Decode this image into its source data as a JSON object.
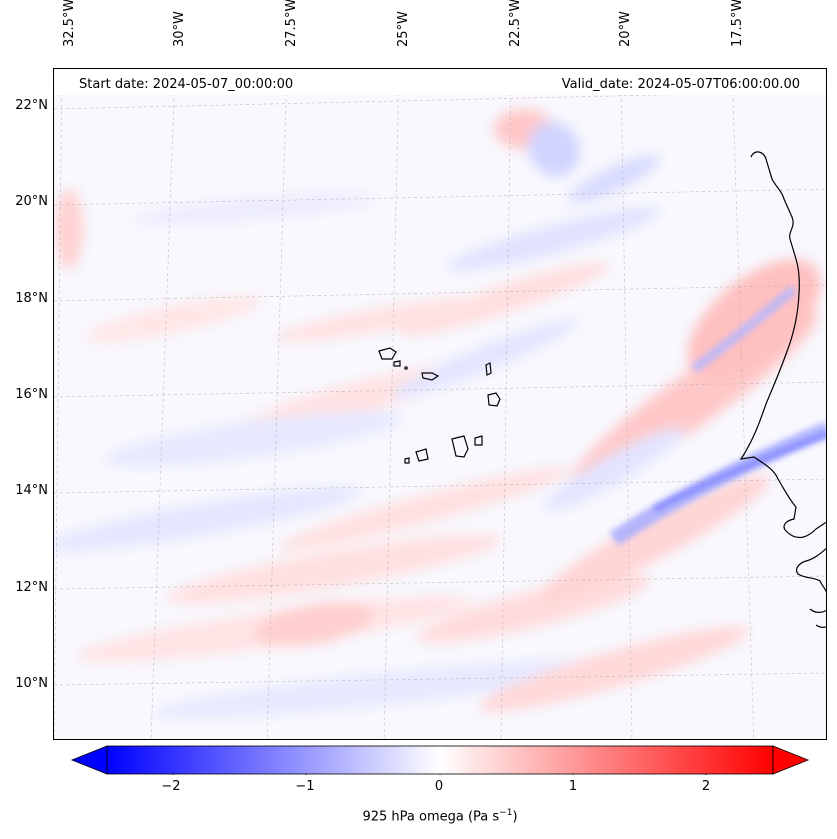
{
  "map": {
    "info": {
      "start_date": "Start date: 2024-05-07_00:00:00",
      "valid_date": "Valid_date: 2024-05-07T06:00:00.00"
    },
    "longitude_labels": [
      "32.5°W",
      "30°W",
      "27.5°W",
      "25°W",
      "22.5°W",
      "20°W",
      "17.5°W"
    ],
    "latitude_labels": [
      "22°N",
      "20°N",
      "18°N",
      "16°N",
      "14°N",
      "12°N",
      "10°N"
    ],
    "extent": {
      "lon": [
        -33,
        -16
      ],
      "lat": [
        8.9,
        22.8
      ]
    },
    "field": "925 hPa omega",
    "gridlines": true,
    "colormap": "bwr",
    "colors": {
      "negative": "#0000ff",
      "zero": "#ffffff",
      "positive": "#ff0000",
      "coastline": "#000000"
    }
  },
  "colorbar": {
    "ticks": [
      "−2",
      "−1",
      "0",
      "1",
      "2"
    ],
    "tick_values": [
      -2,
      -1,
      0,
      1,
      2
    ],
    "range": [
      -2.5,
      2.5
    ],
    "extend": "both",
    "title_main": "925 hPa omega (Pa s",
    "title_sup": "−1",
    "title_end": ")"
  }
}
